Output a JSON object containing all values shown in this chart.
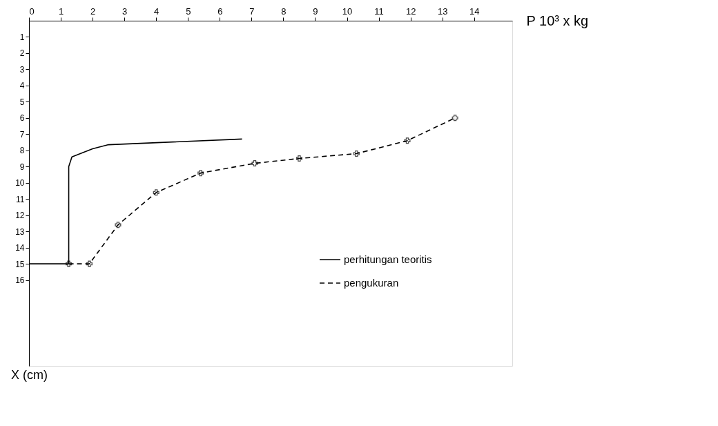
{
  "chart_data": {
    "type": "line",
    "xlabel": "P  10³ x kg",
    "ylabel": "X (cm)",
    "xlim": [
      0,
      15.2
    ],
    "ylim": [
      21.3,
      0
    ],
    "xticks": [
      0,
      1,
      2,
      3,
      4,
      5,
      6,
      7,
      8,
      9,
      10,
      11,
      12,
      13,
      14
    ],
    "yticks": [
      1,
      2,
      3,
      4,
      5,
      6,
      7,
      8,
      9,
      10,
      11,
      12,
      13,
      14,
      15,
      16
    ],
    "grid": false,
    "legend": "bottom right",
    "series": [
      {
        "name": "perhitungan teoritis",
        "color": "#000000",
        "line_style": "solid",
        "marker": "none",
        "x": [
          0,
          1.25,
          1.25,
          1.35,
          2.0,
          2.5,
          6.7
        ],
        "values": [
          15,
          15,
          9,
          8.4,
          7.9,
          7.65,
          7.3
        ]
      },
      {
        "name": "pengukuran",
        "color": "#000000",
        "line_style": "dashed",
        "marker": "cross",
        "x": [
          1.25,
          1.9,
          2.8,
          4.0,
          5.4,
          7.1,
          8.5,
          10.3,
          11.9,
          13.4
        ],
        "values": [
          15,
          15,
          12.6,
          10.6,
          9.4,
          8.8,
          8.5,
          8.2,
          7.4,
          6.0
        ]
      }
    ]
  }
}
